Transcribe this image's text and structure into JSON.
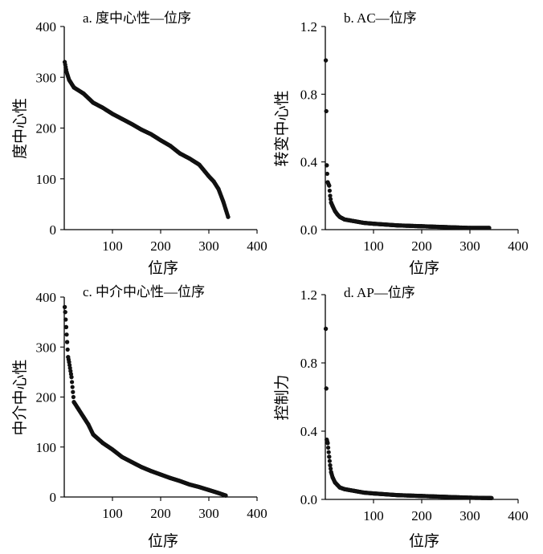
{
  "chart_data": [
    {
      "type": "scatter",
      "title": "a. 度中心性—位序",
      "xlabel": "位序",
      "ylabel": "度中心性",
      "xlim": [
        0,
        400
      ],
      "ylim": [
        0,
        400
      ],
      "xticks": [
        100,
        200,
        300,
        400
      ],
      "yticks": [
        0,
        100,
        200,
        300,
        400
      ],
      "x": [
        1,
        5,
        10,
        20,
        40,
        60,
        80,
        100,
        120,
        140,
        160,
        180,
        200,
        220,
        240,
        260,
        280,
        300,
        310,
        320,
        330,
        335,
        340
      ],
      "y": [
        330,
        310,
        295,
        280,
        268,
        250,
        240,
        228,
        218,
        208,
        197,
        188,
        176,
        165,
        150,
        140,
        128,
        105,
        95,
        80,
        55,
        40,
        25
      ]
    },
    {
      "type": "scatter",
      "title": "b. AC—位序",
      "xlabel": "位序",
      "ylabel": "转变中心性",
      "xlim": [
        0,
        400
      ],
      "ylim": [
        0,
        1.2
      ],
      "xticks": [
        100,
        200,
        300,
        400
      ],
      "yticks": [
        0.0,
        0.4,
        0.8,
        1.2
      ],
      "ytick_labels": [
        "0.0",
        "0.4",
        "0.8",
        "1.2"
      ],
      "x": [
        1,
        2,
        3,
        5,
        8,
        10,
        12,
        15,
        20,
        25,
        30,
        40,
        50,
        60,
        80,
        100,
        150,
        200,
        250,
        300,
        340
      ],
      "y": [
        1.0,
        0.7,
        0.38,
        0.28,
        0.26,
        0.2,
        0.16,
        0.14,
        0.11,
        0.09,
        0.075,
        0.06,
        0.055,
        0.05,
        0.04,
        0.035,
        0.025,
        0.02,
        0.015,
        0.01,
        0.01
      ]
    },
    {
      "type": "scatter",
      "title": "c. 中介中心性—位序",
      "xlabel": "位序",
      "ylabel": "中介中心性",
      "xlim": [
        0,
        400
      ],
      "ylim": [
        0,
        400
      ],
      "xticks": [
        100,
        200,
        300,
        400
      ],
      "yticks": [
        0,
        100,
        200,
        300,
        400
      ],
      "x": [
        1,
        2,
        4,
        6,
        8,
        10,
        15,
        20,
        30,
        40,
        50,
        60,
        80,
        100,
        120,
        140,
        160,
        180,
        200,
        220,
        240,
        260,
        280,
        300,
        320,
        335
      ],
      "y": [
        380,
        370,
        340,
        310,
        280,
        270,
        240,
        190,
        175,
        160,
        145,
        125,
        108,
        95,
        80,
        70,
        60,
        52,
        45,
        38,
        32,
        25,
        20,
        14,
        8,
        3
      ]
    },
    {
      "type": "scatter",
      "title": "d. AP—位序",
      "xlabel": "位序",
      "ylabel": "控制力",
      "xlim": [
        0,
        400
      ],
      "ylim": [
        0,
        1.2
      ],
      "xticks": [
        100,
        200,
        300,
        400
      ],
      "yticks": [
        0.0,
        0.4,
        0.8,
        1.2
      ],
      "ytick_labels": [
        "0.0",
        "0.4",
        "0.8",
        "1.2"
      ],
      "x": [
        1,
        2,
        3,
        5,
        8,
        10,
        12,
        15,
        20,
        25,
        30,
        40,
        50,
        60,
        80,
        100,
        150,
        200,
        250,
        300,
        345
      ],
      "y": [
        1.0,
        0.65,
        0.35,
        0.33,
        0.25,
        0.2,
        0.16,
        0.13,
        0.1,
        0.085,
        0.07,
        0.06,
        0.055,
        0.05,
        0.04,
        0.035,
        0.025,
        0.02,
        0.015,
        0.01,
        0.008
      ]
    }
  ]
}
